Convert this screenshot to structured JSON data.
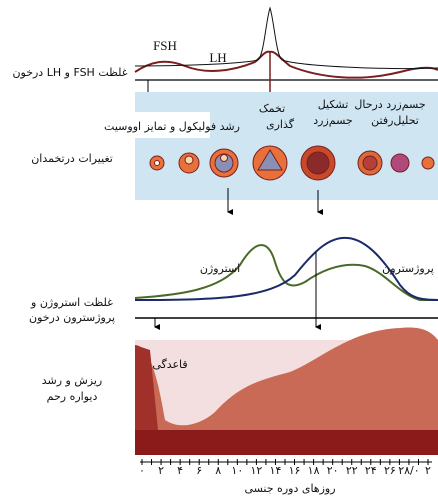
{
  "hormones_top": {
    "fsh": "FSH",
    "lh": "LH",
    "label": "غلظت FSH و LH درخون"
  },
  "ovary": {
    "labels": [
      "جسم‌زرد درحال",
      "تحلیل‌رفتن",
      "تشکیل",
      "جسم‌زرد",
      "تخمک",
      "گذاری",
      "رشد فولیکول و تمایز اووسیت"
    ],
    "title": "تغییرات درتخمدان"
  },
  "hormones_bottom": {
    "estrogen": "استروژن",
    "progesterone": "پروژسترون",
    "label": [
      "غلظت استروژن و",
      "پروژسترون درخون"
    ]
  },
  "uterus": {
    "menstruation": "قاعدگی",
    "label": [
      "ریزش و رشد",
      "دیواره رحم"
    ]
  },
  "axis": {
    "ticks": [
      "۰",
      "۲",
      "۴",
      "۶",
      "۸",
      "۱۰",
      "۱۲",
      "۱۴",
      "۱۶",
      "۱۸",
      "۲۰",
      "۲۲",
      "۲۴",
      "۲۶",
      "۲۸/۰",
      "۲"
    ],
    "title": "روزهای دوره جنسی"
  }
}
